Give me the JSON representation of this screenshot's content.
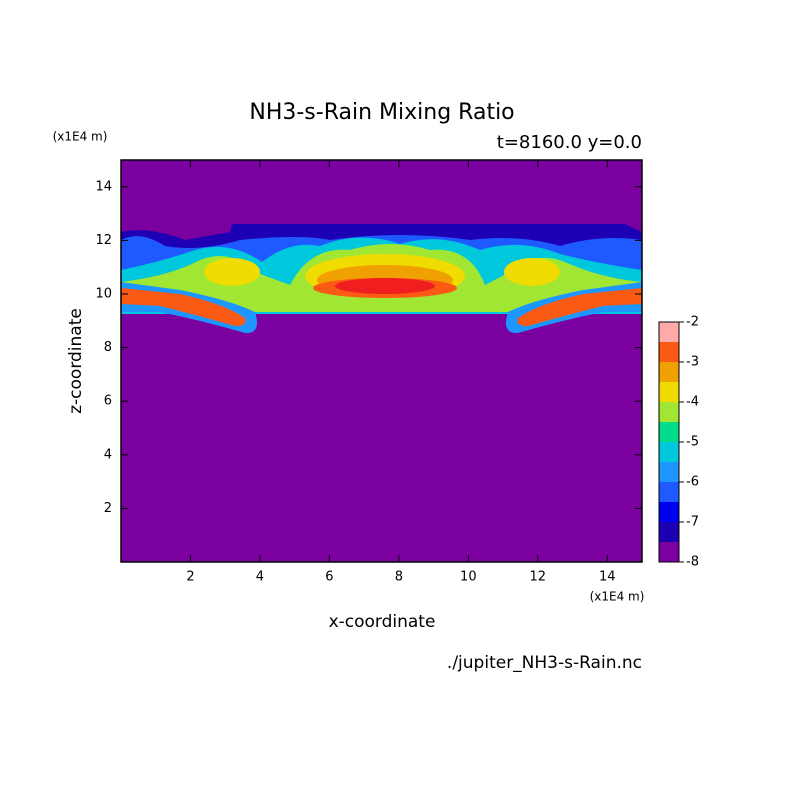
{
  "chart_data": {
    "type": "contour",
    "title": "NH3-s-Rain Mixing Ratio",
    "subtitle": "t=8160.0 y=0.0",
    "x_label": "x-coordinate",
    "y_label": "z-coordinate",
    "x_unit": "(x1E4 m)",
    "y_unit": "(x1E4 m)",
    "footer": "./jupiter_NH3-s-Rain.nc",
    "xlim": [
      0,
      15
    ],
    "ylim": [
      0,
      15
    ],
    "xticks": [
      2,
      4,
      6,
      8,
      10,
      12,
      14
    ],
    "yticks": [
      2,
      4,
      6,
      8,
      10,
      12,
      14
    ],
    "colorbar": {
      "lim": [
        -8,
        -2
      ],
      "ticks": [
        -8,
        -7,
        -6,
        -5,
        -4,
        -3,
        -2
      ],
      "levels": [
        -8,
        -7.5,
        -7,
        -6.5,
        -6,
        -5.5,
        -5,
        -4.5,
        -4,
        -3.5,
        -3,
        -2.5,
        -2
      ],
      "colors": [
        "#7a00a0",
        "#1e00b4",
        "#0000f0",
        "#1e5aff",
        "#1e96ff",
        "#00c8dc",
        "#00dc8c",
        "#a0e632",
        "#f0dc00",
        "#f0a000",
        "#fa5a14",
        "#f01e1e"
      ]
    },
    "top_color": "#ffaaaa"
  }
}
